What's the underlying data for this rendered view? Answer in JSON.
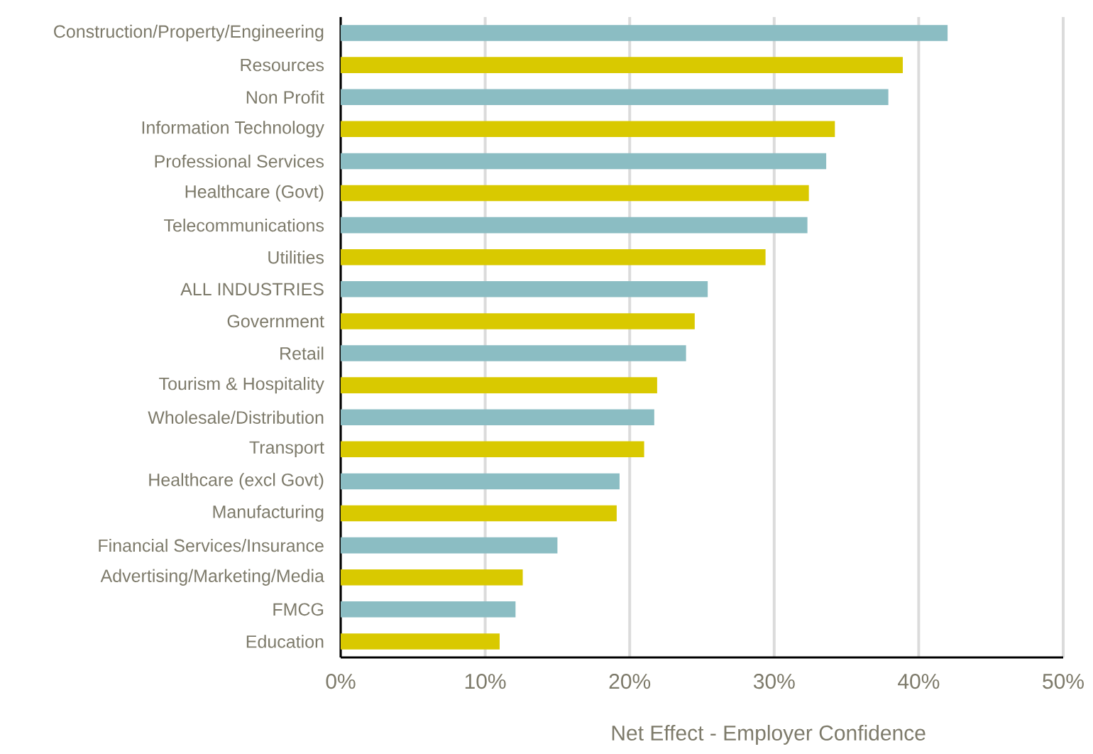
{
  "chart_data": {
    "type": "bar",
    "orientation": "horizontal",
    "xlabel": "Net Effect - Employer Confidence",
    "categories": [
      "Construction/Property/Engineering",
      "Resources",
      "Non Profit",
      "Information Technology",
      "Professional Services",
      "Healthcare (Govt)",
      "Telecommunications",
      "Utilities",
      "ALL INDUSTRIES",
      "Government",
      "Retail",
      "Tourism & Hospitality",
      "Wholesale/Distribution",
      "Transport",
      "Healthcare (excl Govt)",
      "Manufacturing",
      "Financial Services/Insurance",
      "Advertising/Marketing/Media",
      "FMCG",
      "Education"
    ],
    "values": [
      42.0,
      38.9,
      37.9,
      34.2,
      33.6,
      32.4,
      32.3,
      29.4,
      25.4,
      24.5,
      23.9,
      21.9,
      21.7,
      21.0,
      19.3,
      19.1,
      15.0,
      12.6,
      12.1,
      11.0
    ],
    "colors": [
      "#8bbdc3",
      "#d9c900",
      "#8bbdc3",
      "#d9c900",
      "#8bbdc3",
      "#d9c900",
      "#8bbdc3",
      "#d9c900",
      "#8bbdc3",
      "#d9c900",
      "#8bbdc3",
      "#d9c900",
      "#8bbdc3",
      "#d9c900",
      "#8bbdc3",
      "#d9c900",
      "#8bbdc3",
      "#d9c900",
      "#8bbdc3",
      "#d9c900"
    ],
    "xlim": [
      0,
      50
    ],
    "xticks": [
      {
        "value": 0,
        "label": "0%"
      },
      {
        "value": 10,
        "label": "10%"
      },
      {
        "value": 20,
        "label": "20%"
      },
      {
        "value": 30,
        "label": "30%"
      },
      {
        "value": 40,
        "label": "40%"
      },
      {
        "value": 50,
        "label": "50%"
      }
    ],
    "grid": "x"
  }
}
